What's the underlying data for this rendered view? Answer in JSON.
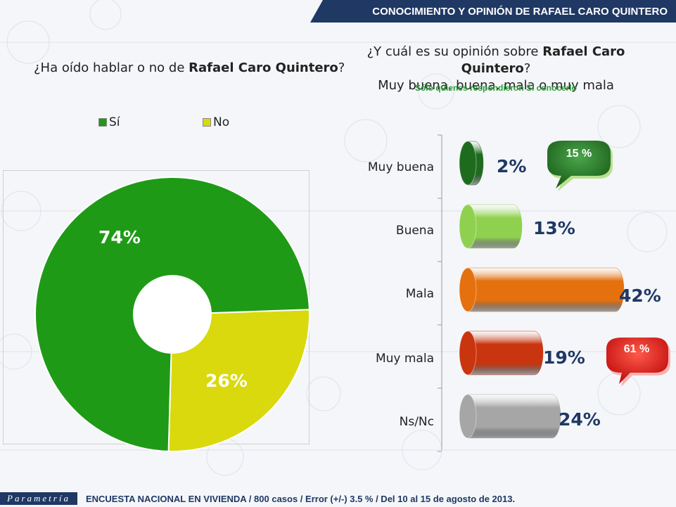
{
  "header": {
    "title": "CONOCIMIENTO Y OPINIÓN DE RAFAEL CARO QUINTERO"
  },
  "left": {
    "question_pre": "¿Ha oído hablar o no de ",
    "question_bold": "Rafael Caro Quintero",
    "question_post": "?"
  },
  "right": {
    "question_pre": "¿Y cuál es su opinión sobre ",
    "question_bold": "Rafael Caro Quintero",
    "question_post": "?",
    "question_line2": "Muy buena, buena, mala o muy mala",
    "note": "Sólo quienes respondieron Sí conocerlo"
  },
  "colors": {
    "si": "#1f9a16",
    "no": "#d9d90e",
    "muy_buena": "#1e6b1e",
    "buena": "#8fd14f",
    "mala": "#e5700e",
    "muy_mala": "#c9350f",
    "nsnc": "#a6a6a6",
    "title_bg": "#1f3864"
  },
  "chart_data": [
    {
      "type": "pie",
      "variant": "donut",
      "categories": [
        "Sí",
        "No"
      ],
      "values": [
        74,
        26
      ],
      "labels": [
        "74%",
        "26%"
      ],
      "legend": [
        "Sí",
        "No"
      ]
    },
    {
      "type": "bar",
      "orientation": "horizontal",
      "categories": [
        "Muy buena",
        "Buena",
        "Mala",
        "Muy mala",
        "Ns/Nc"
      ],
      "values": [
        2,
        13,
        42,
        19,
        24
      ],
      "labels": [
        "2%",
        "13%",
        "42%",
        "19%",
        "24%"
      ],
      "annotations": [
        {
          "text": "15 %",
          "groups": [
            "Muy buena",
            "Buena"
          ]
        },
        {
          "text": "61 %",
          "groups": [
            "Mala",
            "Muy mala"
          ]
        }
      ]
    }
  ],
  "footer": {
    "logo": "Parametría",
    "text": "ENCUESTA NACIONAL EN VIVIENDA / 800 casos / Error (+/-) 3.5 % / Del 10 al 15 de agosto de 2013."
  }
}
